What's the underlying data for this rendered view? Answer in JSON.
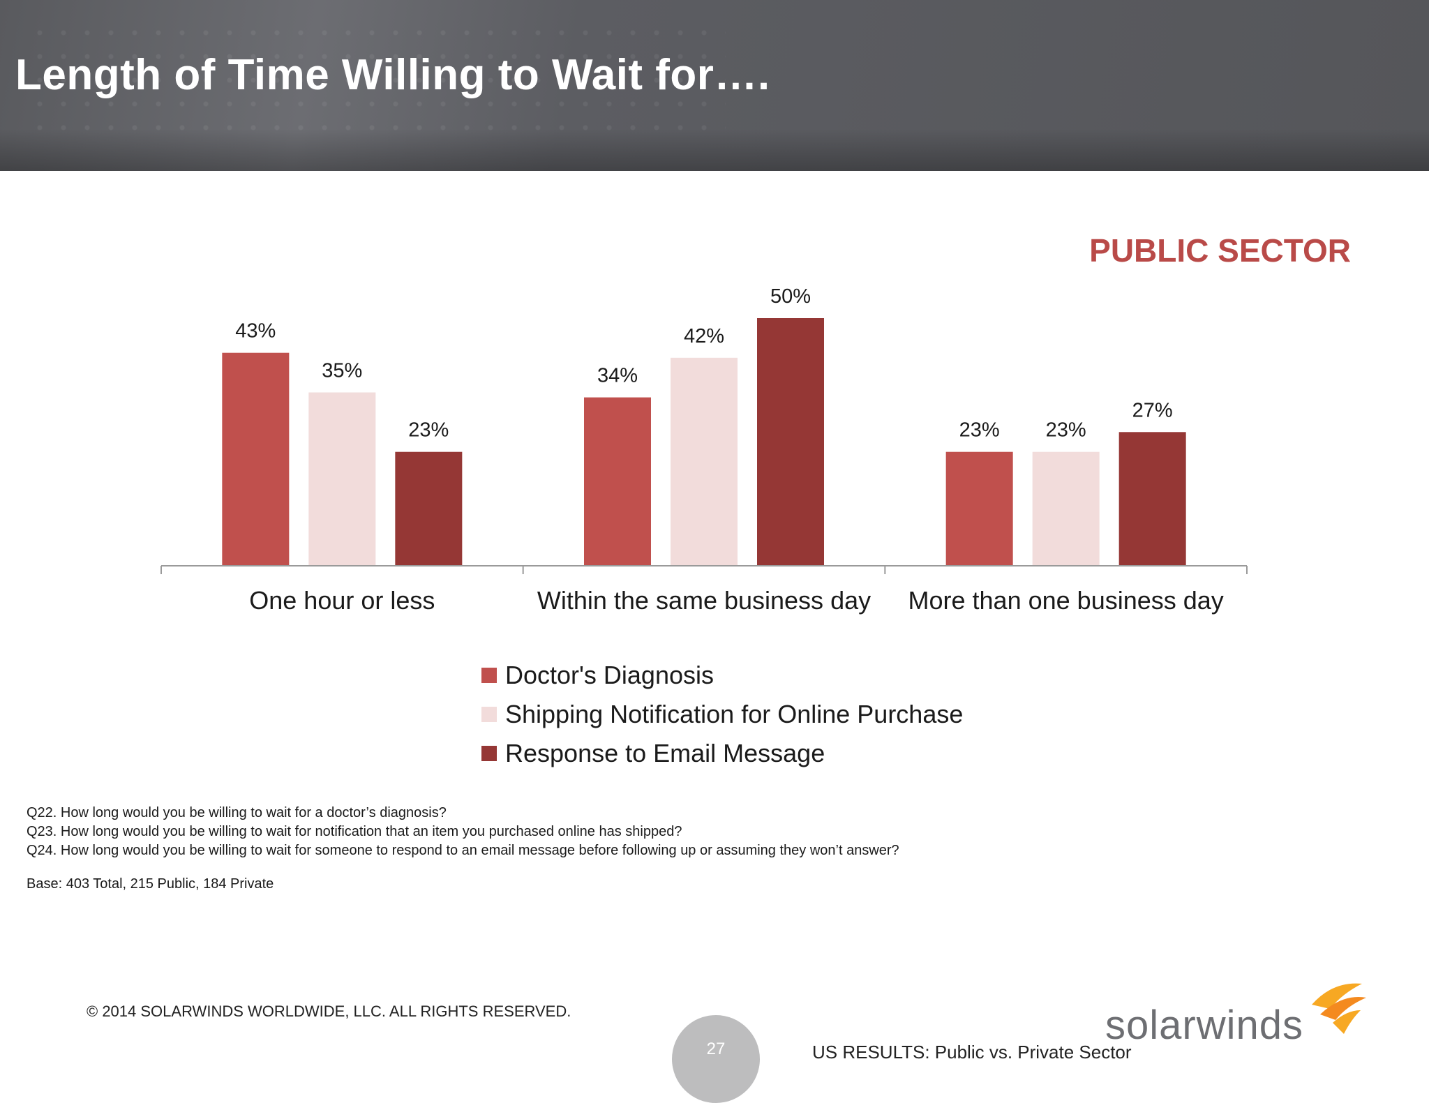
{
  "header": {
    "title": "Length of Time Willing to Wait for…."
  },
  "sector_label": "PUBLIC SECTOR",
  "colors": {
    "doctor": "#c0504d",
    "shipping": "#f2dcdb",
    "email": "#953735",
    "title_accent": "#b94a48"
  },
  "chart_data": {
    "type": "bar",
    "categories": [
      "One hour or less",
      "Within the same business day",
      "More than one business day"
    ],
    "series": [
      {
        "name": "Doctor's Diagnosis",
        "values": [
          43,
          34,
          23
        ],
        "color": "#c0504d"
      },
      {
        "name": "Shipping Notification for Online Purchase",
        "values": [
          35,
          42,
          23
        ],
        "color": "#f2dcdb"
      },
      {
        "name": "Response to Email Message",
        "values": [
          23,
          50,
          27
        ],
        "color": "#953735"
      }
    ],
    "value_suffix": "%",
    "ylim": [
      0,
      50
    ],
    "legend_position": "bottom-center",
    "grid": false
  },
  "notes": {
    "q22": "Q22. How long would you be willing to wait for a doctor’s diagnosis?",
    "q23": "Q23. How long would you be willing to wait for notification that an item you purchased online has shipped?",
    "q24": "Q24. How long would you be willing to wait for someone to respond to an email message before following up or assuming they won’t answer?",
    "base": "Base:  403  Total, 215 Public, 184 Private"
  },
  "footer": {
    "copyright": "© 2014 SOLARWINDS WORLDWIDE, LLC.  ALL RIGHTS RESERVED.",
    "page_number": "27",
    "note": "US RESULTS:  Public vs. Private Sector",
    "logo_text": "solarwinds"
  }
}
